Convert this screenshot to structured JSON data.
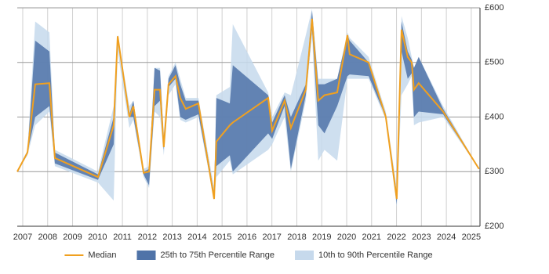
{
  "chart_data": {
    "type": "band-line",
    "x": [
      2006.78,
      2007.19,
      2007.5,
      2008.07,
      2008.29,
      2010.02,
      2010.65,
      2010.81,
      2011.28,
      2011.44,
      2011.85,
      2012.07,
      2012.29,
      2012.51,
      2012.66,
      2012.85,
      2013.13,
      2013.32,
      2013.54,
      2014.05,
      2014.68,
      2014.77,
      2015.31,
      2015.43,
      2016.85,
      2017.01,
      2017.51,
      2017.76,
      2018.36,
      2018.61,
      2018.86,
      2019.11,
      2019.62,
      2020.03,
      2020.12,
      2020.88,
      2021.57,
      2022.01,
      2022.2,
      2022.45,
      2022.61,
      2022.7,
      2022.89,
      2023.87,
      2025.31
    ],
    "series": [
      {
        "name": "10th to 90th Percentile Range",
        "color": "#c6d9ec",
        "lower": [
          300,
          330,
          385,
          410,
          310,
          280,
          247,
          520,
          380,
          395,
          290,
          270,
          410,
          400,
          330,
          440,
          460,
          395,
          390,
          400,
          248,
          290,
          320,
          295,
          340,
          350,
          400,
          300,
          430,
          550,
          320,
          340,
          320,
          470,
          470,
          470,
          395,
          235,
          440,
          460,
          475,
          385,
          390,
          400,
          305
        ],
        "upper": [
          300,
          340,
          575,
          555,
          340,
          300,
          420,
          550,
          420,
          430,
          305,
          310,
          490,
          490,
          370,
          475,
          500,
          470,
          435,
          435,
          270,
          440,
          455,
          570,
          445,
          400,
          445,
          440,
          550,
          598,
          470,
          470,
          470,
          555,
          545,
          510,
          410,
          270,
          585,
          545,
          510,
          490,
          510,
          420,
          305
        ]
      },
      {
        "name": "25th to 75th Percentile Range",
        "color": "#4f73a8",
        "lower": [
          300,
          335,
          400,
          420,
          315,
          285,
          350,
          540,
          400,
          400,
          295,
          275,
          420,
          430,
          340,
          455,
          470,
          400,
          395,
          405,
          250,
          310,
          330,
          300,
          370,
          360,
          420,
          305,
          440,
          560,
          385,
          370,
          420,
          475,
          478,
          475,
          400,
          240,
          520,
          470,
          480,
          400,
          410,
          405,
          305
        ],
        "upper": [
          300,
          335,
          540,
          520,
          335,
          295,
          400,
          550,
          405,
          430,
          300,
          305,
          490,
          485,
          360,
          470,
          495,
          460,
          430,
          430,
          260,
          435,
          425,
          495,
          440,
          390,
          440,
          400,
          460,
          595,
          460,
          460,
          470,
          550,
          540,
          500,
          405,
          260,
          575,
          520,
          505,
          490,
          510,
          415,
          305
        ]
      },
      {
        "name": "Median",
        "color": "#f0a020",
        "values": [
          300,
          335,
          460,
          462,
          325,
          290,
          385,
          548,
          400,
          420,
          298,
          300,
          450,
          450,
          345,
          460,
          475,
          435,
          415,
          425,
          250,
          355,
          385,
          390,
          435,
          375,
          430,
          380,
          450,
          580,
          430,
          440,
          445,
          550,
          515,
          500,
          400,
          250,
          560,
          510,
          500,
          450,
          462,
          410,
          305
        ]
      }
    ],
    "legend_order": [
      2,
      1,
      0
    ],
    "xlim": [
      2006.78,
      2025.35
    ],
    "ylim": [
      200,
      600
    ],
    "xticks": [
      2007,
      2008,
      2009,
      2010,
      2011,
      2012,
      2013,
      2014,
      2015,
      2016,
      2017,
      2018,
      2019,
      2020,
      2021,
      2022,
      2023,
      2024,
      2025
    ],
    "yticks": [
      {
        "value": 200,
        "label": "£200"
      },
      {
        "value": 300,
        "label": "£300"
      },
      {
        "value": 400,
        "label": "£400"
      },
      {
        "value": 500,
        "label": "£500"
      },
      {
        "value": 600,
        "label": "£600"
      }
    ],
    "grid": true
  }
}
